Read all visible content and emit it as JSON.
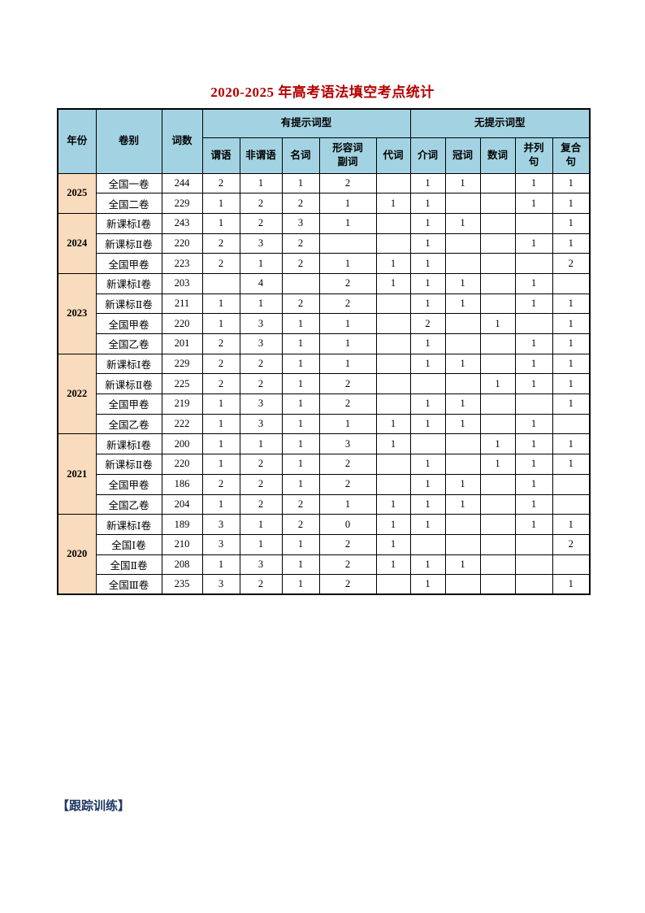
{
  "title": "2020-2025 年高考语法填空考点统计",
  "colors": {
    "title_red": "#b50000",
    "header_blue": "#a3d3e2",
    "year_peach": "#f9dcbd",
    "footer_navy": "#1f3864",
    "border_black": "#000000"
  },
  "table": {
    "header": {
      "year": "年份",
      "paper": "卷别",
      "word_count": "词数",
      "hint_group": "有提示词型",
      "no_hint_group": "无提示词型",
      "hint_columns": [
        "谓语",
        "非谓语",
        "名词",
        "形容词\n副词",
        "代词"
      ],
      "no_hint_columns": [
        "介词",
        "冠词",
        "数词",
        "并列\n句",
        "复合\n句"
      ]
    },
    "groups": [
      {
        "year": "2025",
        "rows": [
          {
            "paper": "全国一卷",
            "words": "244",
            "cells": [
              "2",
              "1",
              "1",
              "2",
              "",
              "1",
              "1",
              "",
              "1",
              "1"
            ]
          },
          {
            "paper": "全国二卷",
            "words": "229",
            "cells": [
              "1",
              "2",
              "2",
              "1",
              "1",
              "1",
              "",
              "",
              "1",
              "1"
            ]
          }
        ]
      },
      {
        "year": "2024",
        "rows": [
          {
            "paper": "新课标Ⅰ卷",
            "words": "243",
            "cells": [
              "1",
              "2",
              "3",
              "1",
              "",
              "1",
              "1",
              "",
              "",
              "1"
            ]
          },
          {
            "paper": "新课标Ⅱ卷",
            "words": "220",
            "cells": [
              "2",
              "3",
              "2",
              "",
              "",
              "1",
              "",
              "",
              "1",
              "1"
            ]
          },
          {
            "paper": "全国甲卷",
            "words": "223",
            "cells": [
              "2",
              "1",
              "2",
              "1",
              "1",
              "1",
              "",
              "",
              "",
              "2"
            ]
          }
        ]
      },
      {
        "year": "2023",
        "rows": [
          {
            "paper": "新课标Ⅰ卷",
            "words": "203",
            "cells": [
              "",
              "4",
              "",
              "2",
              "1",
              "1",
              "1",
              "",
              "1",
              ""
            ]
          },
          {
            "paper": "新课标Ⅱ卷",
            "words": "211",
            "cells": [
              "1",
              "1",
              "2",
              "2",
              "",
              "1",
              "1",
              "",
              "1",
              "1"
            ]
          },
          {
            "paper": "全国甲卷",
            "words": "220",
            "cells": [
              "1",
              "3",
              "1",
              "1",
              "",
              "2",
              "",
              "1",
              "",
              "1"
            ]
          },
          {
            "paper": "全国乙卷",
            "words": "201",
            "cells": [
              "2",
              "3",
              "1",
              "1",
              "",
              "1",
              "",
              "",
              "1",
              "1"
            ]
          }
        ]
      },
      {
        "year": "2022",
        "rows": [
          {
            "paper": "新课标Ⅰ卷",
            "words": "229",
            "cells": [
              "2",
              "2",
              "1",
              "1",
              "",
              "1",
              "1",
              "",
              "1",
              "1"
            ]
          },
          {
            "paper": "新课标Ⅱ卷",
            "words": "225",
            "cells": [
              "2",
              "2",
              "1",
              "2",
              "",
              "",
              "",
              "1",
              "1",
              "1"
            ]
          },
          {
            "paper": "全国甲卷",
            "words": "219",
            "cells": [
              "1",
              "3",
              "1",
              "2",
              "",
              "1",
              "1",
              "",
              "",
              "1"
            ]
          },
          {
            "paper": "全国乙卷",
            "words": "222",
            "cells": [
              "1",
              "3",
              "1",
              "1",
              "1",
              "1",
              "1",
              "",
              "1",
              ""
            ]
          }
        ]
      },
      {
        "year": "2021",
        "rows": [
          {
            "paper": "新课标Ⅰ卷",
            "words": "200",
            "cells": [
              "1",
              "1",
              "1",
              "3",
              "1",
              "",
              "",
              "1",
              "1",
              "1"
            ]
          },
          {
            "paper": "新课标Ⅱ卷",
            "words": "220",
            "cells": [
              "1",
              "2",
              "1",
              "2",
              "",
              "1",
              "",
              "1",
              "1",
              "1"
            ]
          },
          {
            "paper": "全国甲卷",
            "words": "186",
            "cells": [
              "2",
              "2",
              "1",
              "2",
              "",
              "1",
              "1",
              "",
              "1",
              ""
            ]
          },
          {
            "paper": "全国乙卷",
            "words": "204",
            "cells": [
              "1",
              "2",
              "2",
              "1",
              "1",
              "1",
              "1",
              "",
              "1",
              ""
            ]
          }
        ]
      },
      {
        "year": "2020",
        "rows": [
          {
            "paper": "新课标Ⅰ卷",
            "words": "189",
            "cells": [
              "3",
              "1",
              "2",
              "0",
              "1",
              "1",
              "",
              "",
              "1",
              "1"
            ]
          },
          {
            "paper": "全国Ⅰ卷",
            "words": "210",
            "cells": [
              "3",
              "1",
              "1",
              "2",
              "1",
              "",
              "",
              "",
              "",
              "2"
            ]
          },
          {
            "paper": "全国Ⅱ卷",
            "words": "208",
            "cells": [
              "1",
              "3",
              "1",
              "2",
              "1",
              "1",
              "1",
              "",
              "",
              ""
            ]
          },
          {
            "paper": "全国Ⅲ卷",
            "words": "235",
            "cells": [
              "3",
              "2",
              "1",
              "2",
              "",
              "1",
              "",
              "",
              "",
              "1"
            ]
          }
        ]
      }
    ]
  },
  "footer": {
    "tracking_label": "【跟踪训练】"
  }
}
